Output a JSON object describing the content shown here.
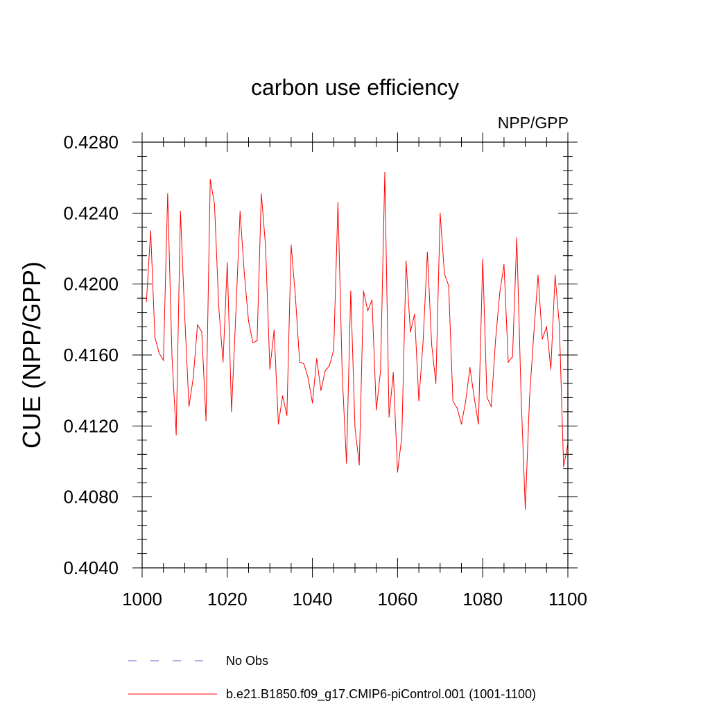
{
  "chart_data": {
    "type": "line",
    "title": "carbon use efficiency",
    "subtitle_right": "NPP/GPP",
    "xlabel": "",
    "ylabel": "CUE  (NPP/GPP)",
    "xlim": [
      1000,
      1100
    ],
    "ylim": [
      0.404,
      0.428
    ],
    "x_ticks": [
      1000,
      1020,
      1040,
      1060,
      1080,
      1100
    ],
    "x_tick_labels": [
      "1000",
      "1020",
      "1040",
      "1060",
      "1080",
      "1100"
    ],
    "y_ticks": [
      0.404,
      0.408,
      0.412,
      0.416,
      0.42,
      0.424,
      0.428
    ],
    "y_tick_labels": [
      "0.4040",
      "0.4080",
      "0.4120",
      "0.4160",
      "0.4200",
      "0.4240",
      "0.4280"
    ],
    "grid": false,
    "series": [
      {
        "name": "No Obs",
        "color": "#6666cc",
        "dash": "dashed",
        "x": [],
        "values": []
      },
      {
        "name": "b.e21.B1850.f09_g17.CMIP6-piControl.001 (1001-1100)",
        "color": "#ff0000",
        "dash": "solid",
        "x": [
          1001,
          1002,
          1003,
          1004,
          1005,
          1006,
          1007,
          1008,
          1009,
          1010,
          1011,
          1012,
          1013,
          1014,
          1015,
          1016,
          1017,
          1018,
          1019,
          1020,
          1021,
          1022,
          1023,
          1024,
          1025,
          1026,
          1027,
          1028,
          1029,
          1030,
          1031,
          1032,
          1033,
          1034,
          1035,
          1036,
          1037,
          1038,
          1039,
          1040,
          1041,
          1042,
          1043,
          1044,
          1045,
          1046,
          1047,
          1048,
          1049,
          1050,
          1051,
          1052,
          1053,
          1054,
          1055,
          1056,
          1057,
          1058,
          1059,
          1060,
          1061,
          1062,
          1063,
          1064,
          1065,
          1066,
          1067,
          1068,
          1069,
          1070,
          1071,
          1072,
          1073,
          1074,
          1075,
          1076,
          1077,
          1078,
          1079,
          1080,
          1081,
          1082,
          1083,
          1084,
          1085,
          1086,
          1087,
          1088,
          1089,
          1090,
          1091,
          1092,
          1093,
          1094,
          1095,
          1096,
          1097,
          1098,
          1099,
          1100
        ],
        "values": [
          0.419,
          0.423,
          0.417,
          0.4161,
          0.4157,
          0.4251,
          0.416,
          0.4115,
          0.4241,
          0.4182,
          0.4131,
          0.4147,
          0.4177,
          0.4173,
          0.4123,
          0.4259,
          0.4245,
          0.4187,
          0.4156,
          0.4212,
          0.4128,
          0.4183,
          0.4241,
          0.4206,
          0.4179,
          0.4167,
          0.4168,
          0.4251,
          0.4221,
          0.4152,
          0.4174,
          0.4121,
          0.4137,
          0.4126,
          0.4222,
          0.4193,
          0.4156,
          0.4155,
          0.4147,
          0.4133,
          0.4158,
          0.414,
          0.4151,
          0.4154,
          0.4163,
          0.4246,
          0.4149,
          0.4099,
          0.4196,
          0.4119,
          0.4098,
          0.4196,
          0.4185,
          0.4191,
          0.4129,
          0.4151,
          0.4263,
          0.4125,
          0.415,
          0.4094,
          0.4114,
          0.4213,
          0.4173,
          0.4183,
          0.4134,
          0.4168,
          0.4218,
          0.4166,
          0.4144,
          0.424,
          0.4206,
          0.4199,
          0.4134,
          0.413,
          0.4121,
          0.4134,
          0.4153,
          0.4136,
          0.4121,
          0.4214,
          0.4136,
          0.4131,
          0.4168,
          0.4195,
          0.4211,
          0.4156,
          0.4159,
          0.4226,
          0.4138,
          0.4073,
          0.4136,
          0.4172,
          0.4205,
          0.4169,
          0.4176,
          0.4152,
          0.4205,
          0.4177,
          0.4097,
          0.411
        ]
      }
    ]
  }
}
